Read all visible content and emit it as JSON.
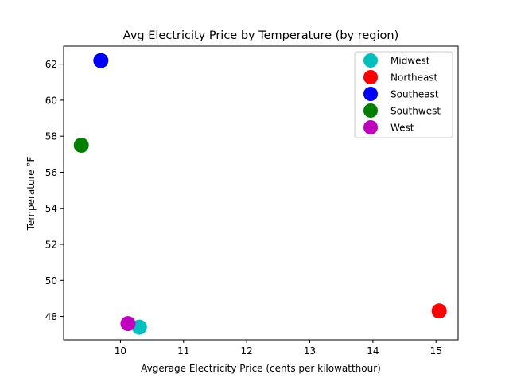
{
  "chart_data": {
    "type": "scatter",
    "title": "Avg Electricity Price by Temperature (by region)",
    "xlabel": "Avgerage Electricity Price (cents per kilowatthour)",
    "ylabel": "Temperature °F",
    "xlim": [
      9.1,
      15.35
    ],
    "ylim": [
      46.7,
      63.0
    ],
    "xticks": [
      10,
      11,
      12,
      13,
      14,
      15
    ],
    "yticks": [
      48,
      50,
      52,
      54,
      56,
      58,
      60,
      62
    ],
    "grid": false,
    "legend": "top-right",
    "series": [
      {
        "name": "Midwest",
        "color": "#00bfbf",
        "points": [
          {
            "x": 10.3,
            "y": 47.4
          }
        ]
      },
      {
        "name": "Northeast",
        "color": "#ff0000",
        "points": [
          {
            "x": 15.05,
            "y": 48.3
          }
        ]
      },
      {
        "name": "Southeast",
        "color": "#0000ff",
        "points": [
          {
            "x": 9.69,
            "y": 62.2
          }
        ]
      },
      {
        "name": "Southwest",
        "color": "#008000",
        "points": [
          {
            "x": 9.38,
            "y": 57.5
          }
        ]
      },
      {
        "name": "West",
        "color": "#bf00bf",
        "points": [
          {
            "x": 10.12,
            "y": 47.6
          }
        ]
      }
    ]
  }
}
